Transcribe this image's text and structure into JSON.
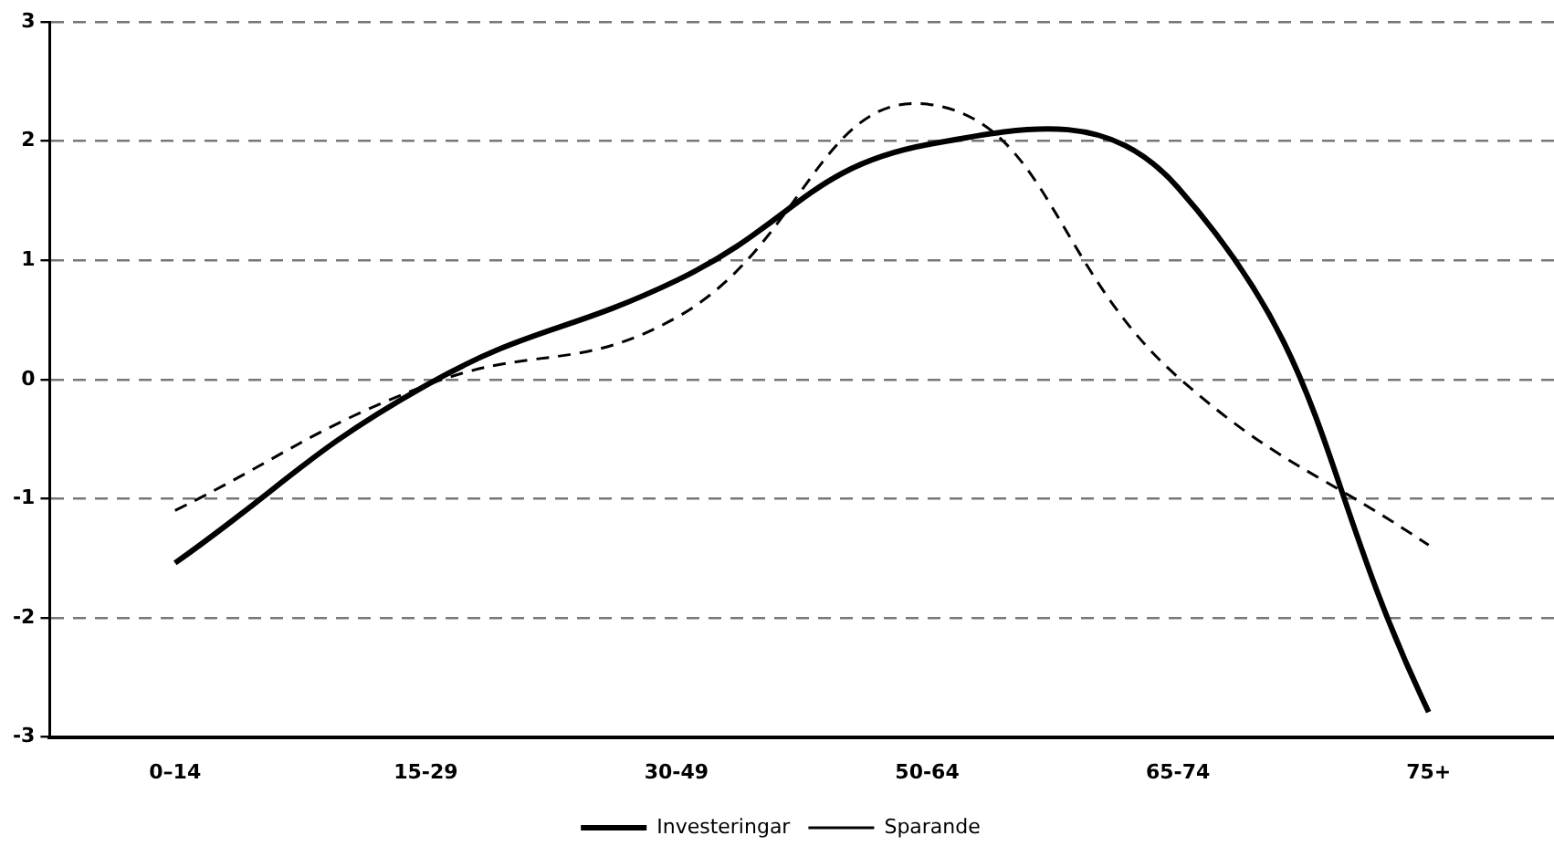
{
  "chart_data": {
    "type": "line",
    "categories": [
      "0–14",
      "15-29",
      "30-49",
      "50-64",
      "65-74",
      "75+"
    ],
    "series": [
      {
        "name": "Investeringar",
        "color": "#000000",
        "line_style": "solid",
        "values": [
          -1.54,
          -0.05,
          0.83,
          1.97,
          1.61,
          -2.79
        ]
      },
      {
        "name": "Sparande",
        "color": "#000000",
        "line_style": "dashed",
        "values": [
          -1.1,
          -0.05,
          0.52,
          2.31,
          0.02,
          -1.39
        ]
      }
    ],
    "ylim": [
      -3,
      3
    ],
    "yticks": [
      -3,
      -2,
      -1,
      0,
      1,
      2,
      3
    ],
    "grid": "y",
    "legend": "bottom",
    "marker": "none"
  }
}
